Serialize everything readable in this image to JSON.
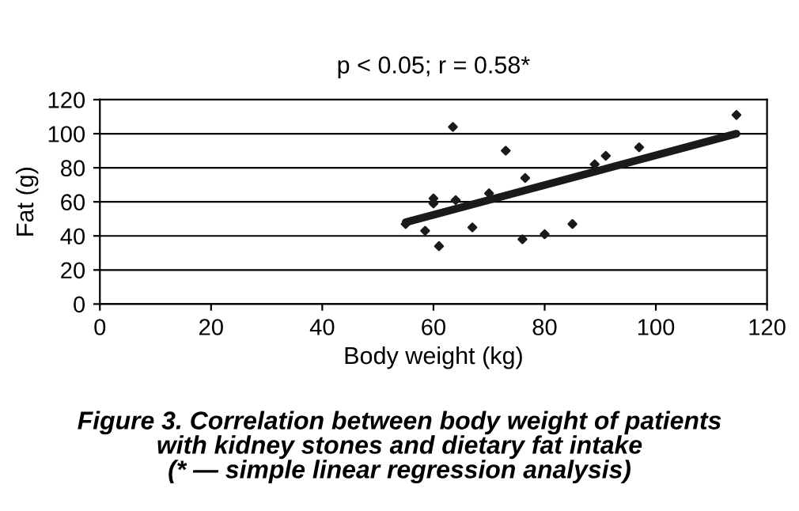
{
  "chart_data": {
    "type": "scatter",
    "title": "p < 0.05; r = 0.58*",
    "xlabel": "Body weight (kg)",
    "ylabel": "Fat (g)",
    "annotations": [
      "Figure 3. Correlation between body weight of patients\nwith kidney stones and dietary fat intake\n(* — simple linear regression analysis)"
    ],
    "x": [
      55,
      58.5,
      60,
      60,
      61,
      63.5,
      64,
      67,
      70,
      73,
      76,
      76.5,
      80,
      85,
      89,
      91,
      97,
      114.5
    ],
    "series": [
      {
        "color": "#1a1a1a",
        "marker": "diamond",
        "values": [
          47,
          43,
          62,
          59,
          34,
          104,
          61,
          45,
          65,
          90,
          38,
          74,
          41,
          47,
          82,
          87,
          92,
          111
        ]
      },
      {
        "type": "line",
        "marker": "none",
        "color": "#1a1a1a",
        "x": [
          55,
          114.5
        ],
        "values": [
          48,
          100
        ]
      }
    ],
    "xlim": [
      0,
      120
    ],
    "ylim": [
      0,
      120
    ],
    "xticks": [
      0,
      20,
      40,
      60,
      80,
      100,
      120
    ],
    "yticks": [
      0,
      20,
      40,
      60,
      80,
      100,
      120
    ],
    "grid": "y",
    "legend": false
  }
}
